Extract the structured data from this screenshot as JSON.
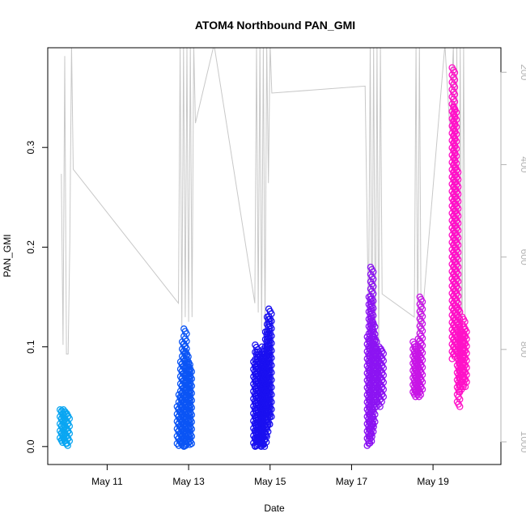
{
  "chart_data": {
    "type": "scatter",
    "title": "ATOM4 Northbound PAN_GMI",
    "xlabel": "Date",
    "ylabel": "PAN_GMI",
    "x_type": "date",
    "xlim": [
      "2016-05-09T13:00",
      "2016-05-20T16:00"
    ],
    "ylim": [
      -0.018,
      0.4
    ],
    "x_ticks": [
      {
        "value": "2016-05-11",
        "label": "May 11"
      },
      {
        "value": "2016-05-13",
        "label": "May 13"
      },
      {
        "value": "2016-05-15",
        "label": "May 15"
      },
      {
        "value": "2016-05-17",
        "label": "May 17"
      },
      {
        "value": "2016-05-19",
        "label": "May 19"
      }
    ],
    "y_ticks": [
      {
        "value": 0.0,
        "label": "0.0"
      },
      {
        "value": 0.1,
        "label": "0.1"
      },
      {
        "value": 0.2,
        "label": "0.2"
      },
      {
        "value": 0.3,
        "label": "0.3"
      }
    ],
    "secondary_y": {
      "reversed": true,
      "ylim": [
        1049,
        147
      ],
      "ticks": [
        {
          "value": 200,
          "label": "200"
        },
        {
          "value": 400,
          "label": "400"
        },
        {
          "value": 600,
          "label": "600"
        },
        {
          "value": 800,
          "label": "800"
        },
        {
          "value": 1000,
          "label": "1000"
        }
      ],
      "color": "#b3b3b3"
    },
    "series": [
      {
        "color": "#0aa6f2",
        "segments": [
          {
            "x": "2016-05-09T21:00",
            "ymin": 0.004,
            "ymax": 0.037
          },
          {
            "x": "2016-05-09T22:00",
            "ymin": 0.006,
            "ymax": 0.036
          },
          {
            "x": "2016-05-09T23:00",
            "ymin": 0.003,
            "ymax": 0.037
          },
          {
            "x": "2016-05-10T00:00",
            "ymin": 0.001,
            "ymax": 0.035
          },
          {
            "x": "2016-05-10T01:00",
            "ymin": 0.003,
            "ymax": 0.033
          }
        ]
      },
      {
        "color": "#0b55f5",
        "segments": [
          {
            "x": "2016-05-12T18:00",
            "ymin": 0.003,
            "ymax": 0.04
          },
          {
            "x": "2016-05-12T19:00",
            "ymin": 0.001,
            "ymax": 0.052
          },
          {
            "x": "2016-05-12T20:00",
            "ymin": 0.002,
            "ymax": 0.085
          },
          {
            "x": "2016-05-12T21:00",
            "ymin": 0.001,
            "ymax": 0.105
          },
          {
            "x": "2016-05-12T22:00",
            "ymin": 0.0,
            "ymax": 0.118
          },
          {
            "x": "2016-05-12T23:00",
            "ymin": 0.001,
            "ymax": 0.095
          },
          {
            "x": "2016-05-13T00:00",
            "ymin": 0.002,
            "ymax": 0.087
          },
          {
            "x": "2016-05-13T01:00",
            "ymin": 0.003,
            "ymax": 0.08
          }
        ]
      },
      {
        "color": "#1a10f0",
        "segments": [
          {
            "x": "2016-05-14T15:00",
            "ymin": 0.001,
            "ymax": 0.085
          },
          {
            "x": "2016-05-14T16:00",
            "ymin": 0.0,
            "ymax": 0.102
          },
          {
            "x": "2016-05-14T17:00",
            "ymin": 0.001,
            "ymax": 0.095
          },
          {
            "x": "2016-05-14T18:00",
            "ymin": 0.0,
            "ymax": 0.092
          },
          {
            "x": "2016-05-14T19:00",
            "ymin": 0.001,
            "ymax": 0.088
          },
          {
            "x": "2016-05-14T20:00",
            "ymin": 0.0,
            "ymax": 0.1
          },
          {
            "x": "2016-05-14T21:00",
            "ymin": 0.002,
            "ymax": 0.096
          },
          {
            "x": "2016-05-14T22:00",
            "ymin": 0.01,
            "ymax": 0.115
          },
          {
            "x": "2016-05-14T23:00",
            "ymin": 0.02,
            "ymax": 0.13
          },
          {
            "x": "2016-05-15T00:00",
            "ymin": 0.03,
            "ymax": 0.138
          }
        ]
      },
      {
        "color": "#8c14f2",
        "segments": [
          {
            "x": "2016-05-17T10:00",
            "ymin": 0.001,
            "ymax": 0.11
          },
          {
            "x": "2016-05-17T11:00",
            "ymin": 0.003,
            "ymax": 0.15
          },
          {
            "x": "2016-05-17T12:00",
            "ymin": 0.01,
            "ymax": 0.18
          },
          {
            "x": "2016-05-17T13:00",
            "ymin": 0.02,
            "ymax": 0.125
          },
          {
            "x": "2016-05-17T14:00",
            "ymin": 0.04,
            "ymax": 0.11
          },
          {
            "x": "2016-05-17T15:00",
            "ymin": 0.05,
            "ymax": 0.1
          },
          {
            "x": "2016-05-17T16:00",
            "ymin": 0.04,
            "ymax": 0.095
          },
          {
            "x": "2016-05-17T17:00",
            "ymin": 0.045,
            "ymax": 0.1
          },
          {
            "x": "2016-05-17T18:00",
            "ymin": 0.05,
            "ymax": 0.098
          }
        ]
      },
      {
        "color": "#c816e6",
        "segments": [
          {
            "x": "2016-05-18T13:00",
            "ymin": 0.05,
            "ymax": 0.105
          },
          {
            "x": "2016-05-18T14:00",
            "ymin": 0.052,
            "ymax": 0.1
          },
          {
            "x": "2016-05-18T15:00",
            "ymin": 0.05,
            "ymax": 0.098
          },
          {
            "x": "2016-05-18T16:00",
            "ymin": 0.052,
            "ymax": 0.108
          },
          {
            "x": "2016-05-18T17:00",
            "ymin": 0.055,
            "ymax": 0.15
          }
        ]
      },
      {
        "color": "#ff12c8",
        "segments": [
          {
            "x": "2016-05-19T12:00",
            "ymin": 0.088,
            "ymax": 0.38
          },
          {
            "x": "2016-05-19T13:00",
            "ymin": 0.09,
            "ymax": 0.34
          },
          {
            "x": "2016-05-19T14:00",
            "ymin": 0.095,
            "ymax": 0.28
          },
          {
            "x": "2016-05-19T15:00",
            "ymin": 0.04,
            "ymax": 0.14
          },
          {
            "x": "2016-05-19T16:00",
            "ymin": 0.055,
            "ymax": 0.12
          },
          {
            "x": "2016-05-19T17:00",
            "ymin": 0.06,
            "ymax": 0.115
          },
          {
            "x": "2016-05-19T18:00",
            "ymin": 0.065,
            "ymax": 0.13
          },
          {
            "x": "2016-05-19T19:00",
            "ymin": 0.06,
            "ymax": 0.12
          }
        ]
      }
    ],
    "secondary_series": {
      "color": "#c8c8c8",
      "points": [
        [
          "2016-05-09T21:00",
          420
        ],
        [
          "2016-05-09T22:00",
          790
        ],
        [
          "2016-05-09T23:00",
          165
        ],
        [
          "2016-05-10T00:00",
          810
        ],
        [
          "2016-05-10T01:00",
          810
        ],
        [
          "2016-05-10T02:00",
          565
        ],
        [
          "2016-05-10T03:00",
          140
        ],
        [
          "2016-05-10T04:00",
          410
        ],
        [
          "2016-05-12T18:00",
          700
        ],
        [
          "2016-05-12T19:00",
          140
        ],
        [
          "2016-05-12T20:00",
          750
        ],
        [
          "2016-05-12T21:00",
          140
        ],
        [
          "2016-05-12T22:00",
          730
        ],
        [
          "2016-05-12T23:00",
          140
        ],
        [
          "2016-05-13T00:00",
          740
        ],
        [
          "2016-05-13T01:00",
          140
        ],
        [
          "2016-05-13T02:00",
          730
        ],
        [
          "2016-05-13T03:00",
          140
        ],
        [
          "2016-05-13T04:00",
          310
        ],
        [
          "2016-05-13T15:00",
          140
        ],
        [
          "2016-05-14T15:00",
          700
        ],
        [
          "2016-05-14T16:00",
          140
        ],
        [
          "2016-05-14T17:00",
          720
        ],
        [
          "2016-05-14T18:00",
          140
        ],
        [
          "2016-05-14T19:00",
          760
        ],
        [
          "2016-05-14T20:00",
          140
        ],
        [
          "2016-05-14T21:00",
          760
        ],
        [
          "2016-05-14T22:00",
          140
        ],
        [
          "2016-05-14T23:00",
          440
        ],
        [
          "2016-05-15T00:00",
          140
        ],
        [
          "2016-05-15T01:00",
          245
        ],
        [
          "2016-05-17T08:00",
          230
        ],
        [
          "2016-05-17T10:00",
          740
        ],
        [
          "2016-05-17T11:00",
          140
        ],
        [
          "2016-05-17T12:00",
          790
        ],
        [
          "2016-05-17T13:00",
          140
        ],
        [
          "2016-05-17T14:00",
          860
        ],
        [
          "2016-05-17T15:00",
          140
        ],
        [
          "2016-05-17T16:00",
          820
        ],
        [
          "2016-05-17T17:00",
          140
        ],
        [
          "2016-05-17T18:00",
          680
        ],
        [
          "2016-05-18T13:00",
          730
        ],
        [
          "2016-05-18T14:00",
          140
        ],
        [
          "2016-05-18T15:00",
          800
        ],
        [
          "2016-05-18T16:00",
          140
        ],
        [
          "2016-05-18T17:00",
          760
        ],
        [
          "2016-05-19T07:00",
          140
        ],
        [
          "2016-05-19T10:00",
          330
        ],
        [
          "2016-05-19T12:00",
          140
        ],
        [
          "2016-05-19T13:00",
          820
        ],
        [
          "2016-05-19T14:00",
          140
        ],
        [
          "2016-05-19T15:00",
          860
        ],
        [
          "2016-05-19T16:00",
          140
        ],
        [
          "2016-05-19T17:00",
          840
        ],
        [
          "2016-05-19T18:00",
          140
        ],
        [
          "2016-05-19T19:00",
          800
        ]
      ]
    },
    "grid": false,
    "legend": "none"
  }
}
